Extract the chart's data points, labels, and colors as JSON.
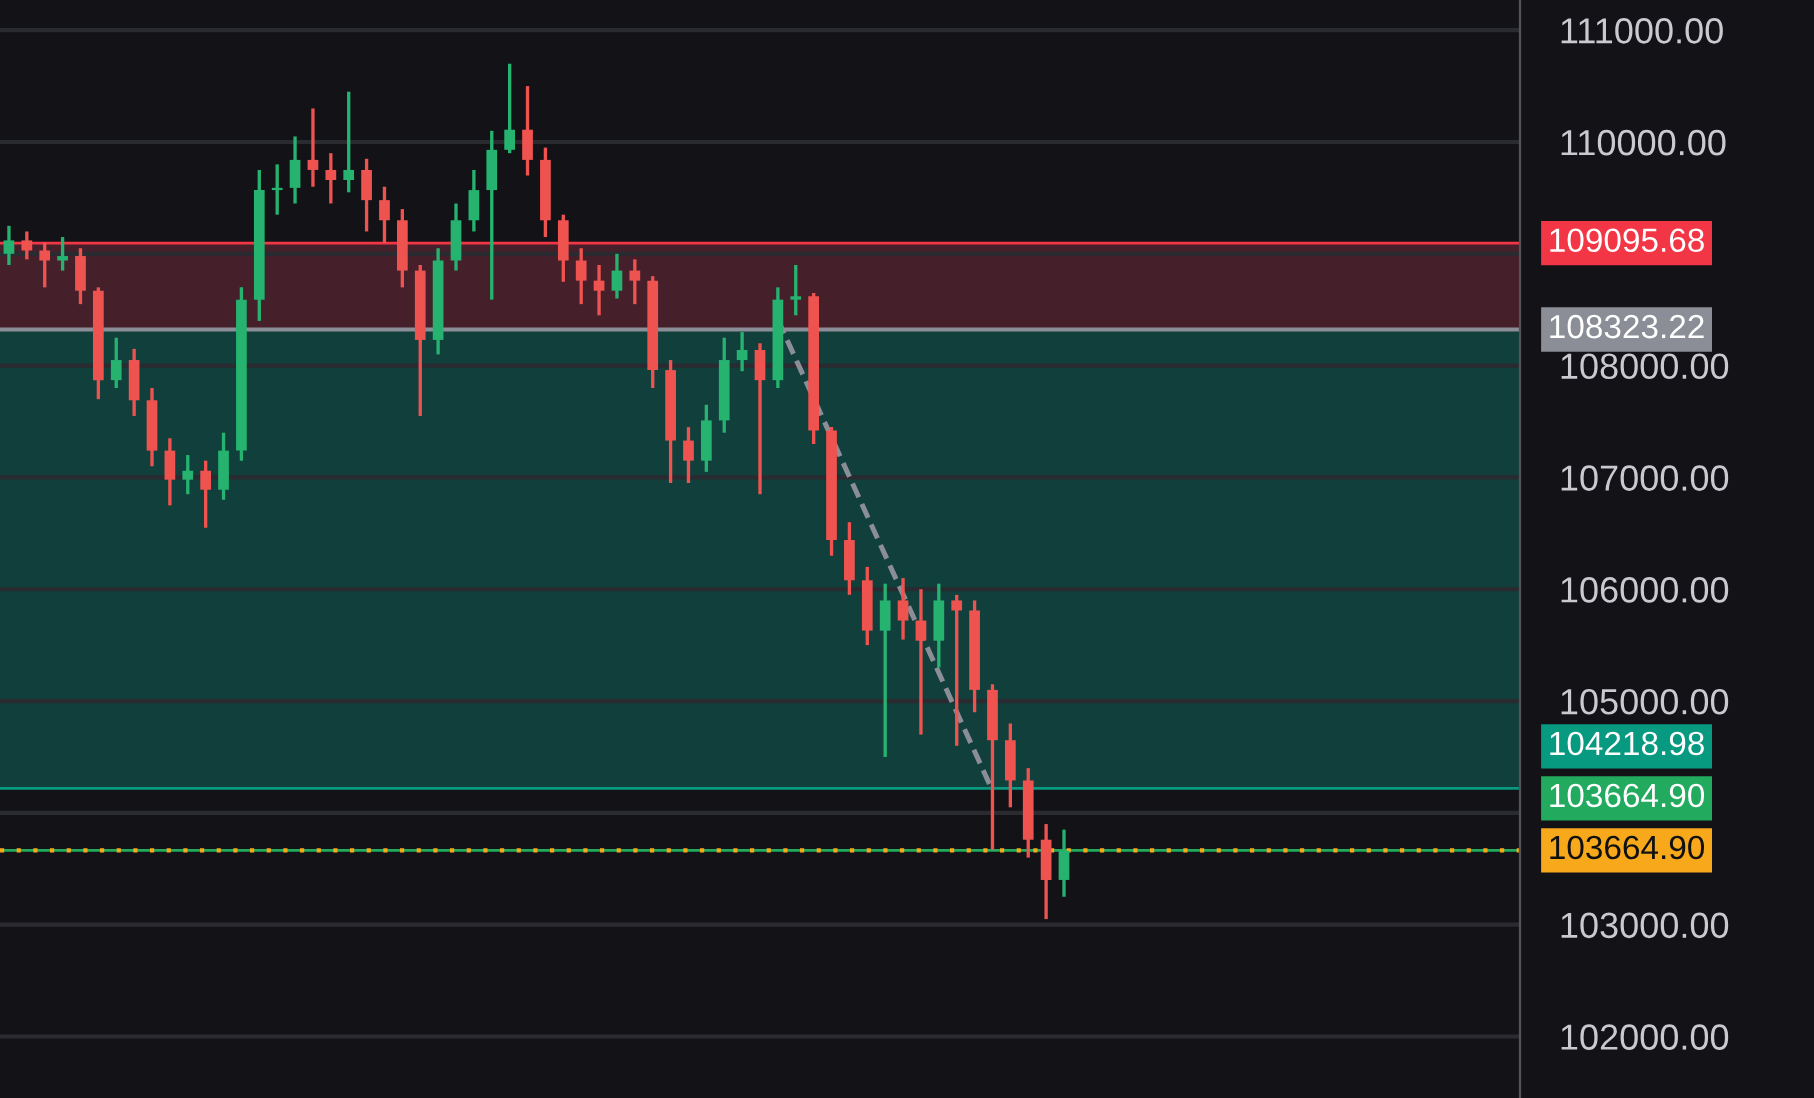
{
  "chart_data": {
    "type": "candlestick",
    "categories": [
      null,
      null,
      null,
      null,
      null,
      null,
      null,
      null,
      null,
      null,
      null,
      null,
      null,
      null,
      null,
      null,
      null,
      null,
      null,
      null,
      null,
      null,
      null,
      null,
      null,
      null,
      null,
      null,
      null,
      null,
      null,
      null,
      null,
      null,
      null,
      null,
      null,
      null,
      null,
      null,
      null,
      null,
      null,
      null,
      null,
      null,
      null,
      null,
      null,
      null,
      null,
      null,
      null,
      null,
      null,
      null,
      null,
      null,
      null,
      null,
      null,
      null,
      null,
      null,
      null,
      null,
      null,
      null,
      null,
      null,
      null,
      null,
      null,
      null,
      null,
      null,
      null,
      null,
      null,
      null,
      null,
      null,
      null,
      null,
      null
    ],
    "ohlc": [
      [
        109000,
        109250,
        108900,
        109120
      ],
      [
        109120,
        109200,
        108950,
        109030
      ],
      [
        109030,
        109100,
        108700,
        108940
      ],
      [
        108940,
        109150,
        108850,
        108980
      ],
      [
        108980,
        109050,
        108550,
        108670
      ],
      [
        108670,
        108700,
        107700,
        107870
      ],
      [
        107870,
        108250,
        107800,
        108050
      ],
      [
        108050,
        108150,
        107550,
        107690
      ],
      [
        107690,
        107800,
        107100,
        107240
      ],
      [
        107240,
        107350,
        106750,
        106980
      ],
      [
        106980,
        107200,
        106850,
        107060
      ],
      [
        107060,
        107150,
        106550,
        106890
      ],
      [
        106890,
        107400,
        106800,
        107240
      ],
      [
        107240,
        108700,
        107150,
        108590
      ],
      [
        108590,
        109750,
        108400,
        109570
      ],
      [
        109570,
        109800,
        109350,
        109590
      ],
      [
        109590,
        110050,
        109450,
        109840
      ],
      [
        109840,
        110300,
        109600,
        109750
      ],
      [
        109750,
        109900,
        109450,
        109660
      ],
      [
        109660,
        110450,
        109550,
        109750
      ],
      [
        109750,
        109850,
        109200,
        109480
      ],
      [
        109480,
        109600,
        109100,
        109300
      ],
      [
        109300,
        109400,
        108700,
        108850
      ],
      [
        108850,
        108900,
        107550,
        108230
      ],
      [
        108230,
        109050,
        108100,
        108940
      ],
      [
        108940,
        109450,
        108850,
        109300
      ],
      [
        109300,
        109750,
        109200,
        109570
      ],
      [
        109570,
        110100,
        108590,
        109930
      ],
      [
        109930,
        110700,
        109900,
        110110
      ],
      [
        110110,
        110500,
        109700,
        109840
      ],
      [
        109840,
        109950,
        109150,
        109300
      ],
      [
        109300,
        109350,
        108750,
        108940
      ],
      [
        108940,
        109050,
        108550,
        108760
      ],
      [
        108760,
        108900,
        108450,
        108670
      ],
      [
        108670,
        109000,
        108600,
        108850
      ],
      [
        108850,
        108950,
        108550,
        108760
      ],
      [
        108760,
        108800,
        107800,
        107960
      ],
      [
        107960,
        108050,
        106950,
        107330
      ],
      [
        107330,
        107450,
        106950,
        107150
      ],
      [
        107150,
        107650,
        107050,
        107510
      ],
      [
        107510,
        108250,
        107400,
        108050
      ],
      [
        108050,
        108300,
        107950,
        108140
      ],
      [
        108140,
        108200,
        106850,
        107870
      ],
      [
        107870,
        108700,
        107800,
        108590
      ],
      [
        108590,
        108900,
        108450,
        108620
      ],
      [
        108620,
        108650,
        107300,
        107420
      ],
      [
        107420,
        107450,
        106300,
        106440
      ],
      [
        106440,
        106600,
        105950,
        106080
      ],
      [
        106080,
        106200,
        105500,
        105630
      ],
      [
        105630,
        106050,
        104500,
        105900
      ],
      [
        105900,
        106100,
        105550,
        105720
      ],
      [
        105720,
        106000,
        104700,
        105540
      ],
      [
        105540,
        106050,
        105300,
        105900
      ],
      [
        105900,
        105950,
        104600,
        105810
      ],
      [
        105810,
        105900,
        104900,
        105100
      ],
      [
        105100,
        105150,
        103670,
        104650
      ],
      [
        104650,
        104800,
        104050,
        104290
      ],
      [
        104290,
        104400,
        103600,
        103760
      ],
      [
        103760,
        103900,
        103050,
        103400
      ],
      [
        103400,
        103850,
        103250,
        103660
      ],
      null,
      null,
      null,
      null,
      null,
      null,
      null,
      null,
      null,
      null,
      null,
      null,
      null,
      null,
      null,
      null,
      null,
      null,
      null,
      null,
      null,
      null,
      null,
      null,
      null
    ],
    "series": [
      {
        "type": "line",
        "values": [
          null,
          null,
          null,
          null,
          null,
          null,
          null,
          null,
          null,
          null,
          null,
          null,
          null,
          null,
          null,
          null,
          null,
          null,
          null,
          null,
          null,
          null,
          null,
          null,
          null,
          null,
          null,
          null,
          null,
          null,
          null,
          null,
          null,
          null,
          null,
          null,
          null,
          null,
          null,
          null,
          null,
          null,
          null,
          108410,
          null,
          null,
          null,
          null,
          null,
          null,
          null,
          null,
          null,
          null,
          null,
          104200,
          null,
          null,
          null,
          null,
          null,
          null,
          null,
          null,
          null,
          null,
          null,
          null,
          null,
          null,
          null,
          null,
          null,
          null,
          null,
          null,
          null,
          null,
          null,
          null,
          null,
          null,
          null,
          null,
          null
        ],
        "color": "#8b8e97",
        "line_style": "dashed"
      }
    ],
    "ylim": [
      101450,
      111270
    ],
    "yticks": [
      {
        "value": 102000,
        "label": "102000.00"
      },
      {
        "value": 103000,
        "label": "103000.00"
      },
      {
        "value": 104000,
        "label": null
      },
      {
        "value": 105000,
        "label": "105000.00"
      },
      {
        "value": 106000,
        "label": "106000.00"
      },
      {
        "value": 107000,
        "label": "107000.00"
      },
      {
        "value": 108000,
        "label": "108000.00"
      },
      {
        "value": 109000,
        "label": null
      },
      {
        "value": 110000,
        "label": "110000.00"
      },
      {
        "value": 111000,
        "label": "111000.00"
      }
    ],
    "tick_labels": "y",
    "grid": "y",
    "ref_lines": [
      {
        "axis": "y",
        "value": 109095.68,
        "label": "109095.68",
        "color": "#f23645"
      },
      {
        "axis": "y",
        "value": 108323.22,
        "label": "108323.22",
        "color": "#8b8e97",
        "line_style": "solid"
      },
      {
        "axis": "y",
        "value": 104218.98,
        "label": "104218.98",
        "color": "#089981"
      },
      {
        "axis": "y",
        "value": 103664.9,
        "label": "103664.90",
        "color": "#22ab5f"
      },
      {
        "axis": "y",
        "value": 103664.9,
        "label": "103664.90",
        "color": "#f7a81b",
        "line_style": "dotted"
      }
    ],
    "bands": [
      {
        "axis": "y",
        "from": 108323.22,
        "to": 109095.68,
        "color": "#45202a"
      },
      {
        "axis": "y",
        "from": 104218.98,
        "to": 108323.22,
        "color": "#103f3c"
      }
    ]
  }
}
